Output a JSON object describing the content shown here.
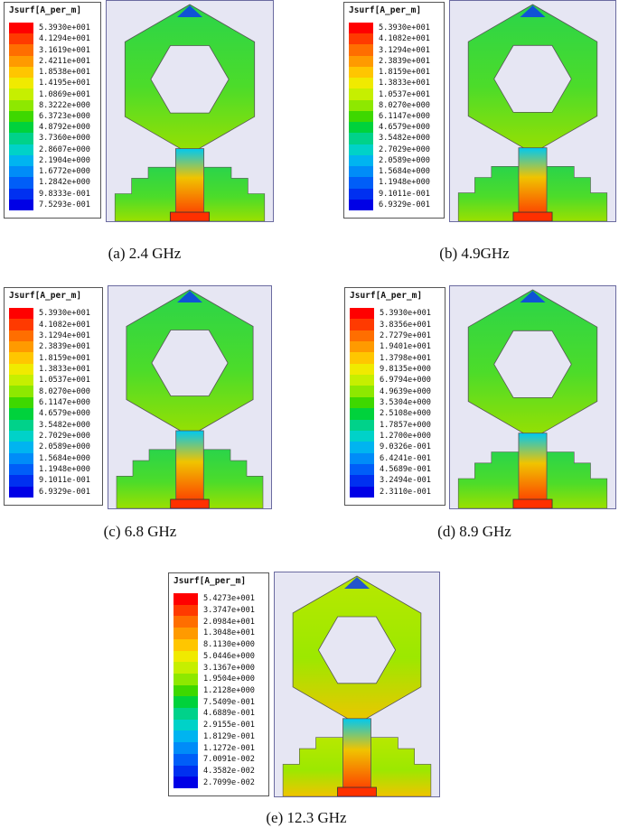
{
  "figure": {
    "legend_title": "Jsurf[A_per_m]",
    "palette": [
      "#ff0000",
      "#ff3a00",
      "#ff6e00",
      "#ff9a00",
      "#ffc600",
      "#f0ea00",
      "#c6ef00",
      "#8ee800",
      "#3ed800",
      "#00d23c",
      "#00d28a",
      "#00d2c8",
      "#00b4f0",
      "#008cf8",
      "#005ef8",
      "#0030f0",
      "#0000e6"
    ],
    "panels": [
      {
        "caption": "(a) 2.4 GHz",
        "ticks": [
          "5.3930e+001",
          "4.1294e+001",
          "3.1619e+001",
          "2.4211e+001",
          "1.8538e+001",
          "1.4195e+001",
          "1.0869e+001",
          "8.3222e+000",
          "6.3723e+000",
          "4.8792e+000",
          "3.7360e+000",
          "2.8607e+000",
          "2.1904e+000",
          "1.6772e+000",
          "1.2842e+000",
          "9.8333e-001",
          "7.5293e-001"
        ]
      },
      {
        "caption": "(b) 4.9GHz",
        "ticks": [
          "5.3930e+001",
          "4.1082e+001",
          "3.1294e+001",
          "2.3839e+001",
          "1.8159e+001",
          "1.3833e+001",
          "1.0537e+001",
          "8.0270e+000",
          "6.1147e+000",
          "4.6579e+000",
          "3.5482e+000",
          "2.7029e+000",
          "2.0589e+000",
          "1.5684e+000",
          "1.1948e+000",
          "9.1011e-001",
          "6.9329e-001"
        ]
      },
      {
        "caption": "(c) 6.8 GHz",
        "ticks": [
          "5.3930e+001",
          "4.1082e+001",
          "3.1294e+001",
          "2.3839e+001",
          "1.8159e+001",
          "1.3833e+001",
          "1.0537e+001",
          "8.0270e+000",
          "6.1147e+000",
          "4.6579e+000",
          "3.5482e+000",
          "2.7029e+000",
          "2.0589e+000",
          "1.5684e+000",
          "1.1948e+000",
          "9.1011e-001",
          "6.9329e-001"
        ]
      },
      {
        "caption": "(d) 8.9 GHz",
        "ticks": [
          "5.3930e+001",
          "3.8356e+001",
          "2.7279e+001",
          "1.9401e+001",
          "1.3798e+001",
          "9.8135e+000",
          "6.9794e+000",
          "4.9639e+000",
          "3.5304e+000",
          "2.5108e+000",
          "1.7857e+000",
          "1.2700e+000",
          "9.0326e-001",
          "6.4241e-001",
          "4.5689e-001",
          "3.2494e-001",
          "2.3110e-001"
        ]
      },
      {
        "caption": "(e) 12.3 GHz",
        "ticks": [
          "5.4273e+001",
          "3.3747e+001",
          "2.0984e+001",
          "1.3048e+001",
          "8.1130e+000",
          "5.0446e+000",
          "3.1367e+000",
          "1.9504e+000",
          "1.2128e+000",
          "7.5409e-001",
          "4.6889e-001",
          "2.9155e-001",
          "1.8129e-001",
          "1.1272e-001",
          "7.0091e-002",
          "4.3582e-002",
          "2.7099e-002"
        ]
      }
    ]
  }
}
